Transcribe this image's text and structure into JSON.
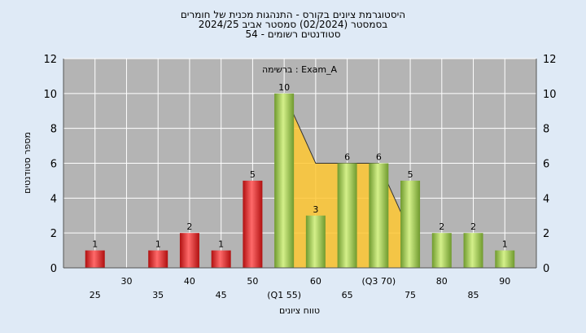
{
  "titles": {
    "line1": "היסטוגרמת ציונים בקורס - התנהגות מכנית של חומרים",
    "line2": "בסמסטר  (02/2024)  סמסטר אביב 2024/25",
    "line3": "סטודנטים רשומים - 54"
  },
  "chart_data": {
    "type": "bar",
    "annotation": "ברשימה : Exam_A",
    "xlabel": "טווח ציונים",
    "ylabel": "מספר סטודנטים",
    "ylim": [
      0,
      12
    ],
    "y_ticks": [
      0,
      2,
      4,
      6,
      8,
      10,
      12
    ],
    "grid": true,
    "categories": [
      "25",
      "30",
      "35",
      "40",
      "45",
      "50",
      "55",
      "60",
      "65",
      "70",
      "75",
      "80",
      "85",
      "90"
    ],
    "category_tick_labels": [
      "25",
      "30",
      "35",
      "40",
      "45",
      "50",
      "(Q1 55)",
      "60",
      "65",
      "(Q3 70)",
      "75",
      "80",
      "85",
      "90"
    ],
    "values": [
      1,
      0,
      1,
      2,
      1,
      5,
      10,
      3,
      6,
      6,
      5,
      2,
      2,
      1
    ],
    "data_labels": [
      "1",
      "",
      "1",
      "2",
      "1",
      "5",
      "10",
      "3",
      "6",
      "6",
      "5",
      "2",
      "2",
      "1"
    ],
    "colors": {
      "fail": "#d42020",
      "pass": "#9ccc55",
      "middle": "#f5c518",
      "background": "#b4b4b4",
      "page": "#dfeaf6",
      "area": "#ffc832"
    },
    "middle_range_categories": [
      "55",
      "70"
    ],
    "area_series": {
      "categories": [
        "55",
        "60",
        "65",
        "70",
        "75"
      ],
      "values": [
        10,
        6,
        6,
        6,
        2
      ]
    }
  }
}
